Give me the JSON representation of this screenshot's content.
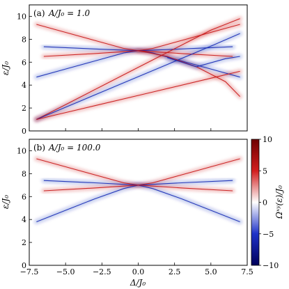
{
  "chart_data": [
    {
      "type": "heatmap",
      "panel_label": "(a)",
      "annotation": "A/J₀ = 1.0",
      "xlabel": "Δ/J₀",
      "ylabel": "ε/J₀",
      "xlim": [
        -7.5,
        7.5
      ],
      "ylim": [
        0,
        11
      ],
      "x_ticks": [],
      "y_ticks": [
        0,
        2,
        4,
        6,
        8,
        10
      ],
      "grid": false,
      "curves": [
        {
          "color": "#c81414",
          "x": [
            -7,
            -5,
            -3,
            -1,
            0,
            1,
            3,
            5,
            7
          ],
          "y": [
            9.3,
            8.6,
            7.9,
            7.2,
            7.0,
            7.2,
            7.9,
            8.6,
            9.3
          ]
        },
        {
          "color": "#1428b4",
          "x": [
            -7,
            -5,
            -3,
            -1,
            0,
            1,
            3,
            5,
            7
          ],
          "y": [
            4.7,
            5.4,
            6.1,
            6.8,
            7.0,
            6.8,
            6.1,
            5.4,
            4.7
          ]
        },
        {
          "color": "#1428b4",
          "x": [
            -6.5,
            -3,
            0,
            3,
            6.5
          ],
          "y": [
            7.35,
            7.15,
            7.0,
            7.15,
            7.35
          ]
        },
        {
          "color": "#c81414",
          "x": [
            -6.5,
            -3,
            0,
            3,
            6.5
          ],
          "y": [
            6.5,
            6.75,
            7.0,
            6.75,
            6.5
          ]
        },
        {
          "color": "#c81414",
          "x": [
            -7,
            -5,
            -3,
            -1,
            1,
            3,
            5,
            7
          ],
          "y": [
            1.0,
            2.3,
            3.6,
            4.9,
            6.2,
            7.5,
            8.8,
            9.8
          ]
        },
        {
          "color": "#1428b4",
          "x": [
            -7,
            -4,
            -1,
            2,
            5,
            7
          ],
          "y": [
            1.0,
            2.6,
            4.2,
            5.8,
            7.4,
            8.5
          ]
        },
        {
          "color": "#c81414",
          "x": [
            -7,
            -3,
            1,
            5,
            7
          ],
          "y": [
            1.0,
            2.2,
            3.4,
            4.6,
            5.2
          ]
        },
        {
          "color": "#c81414",
          "x": [
            0,
            2,
            4,
            6,
            7
          ],
          "y": [
            7.0,
            6.5,
            5.6,
            4.3,
            3.0
          ]
        },
        {
          "color": "#1428b4",
          "x": [
            2,
            4,
            6,
            7
          ],
          "y": [
            6.4,
            5.6,
            6.3,
            6.5
          ]
        }
      ]
    },
    {
      "type": "heatmap",
      "panel_label": "(b)",
      "annotation": "A/J₀ = 100.0",
      "xlabel": "Δ/J₀",
      "ylabel": "ε/J₀",
      "xlim": [
        -7.5,
        7.5
      ],
      "ylim": [
        0,
        11
      ],
      "x_ticks": [
        -7.5,
        -5.0,
        -2.5,
        0.0,
        2.5,
        5.0,
        7.5
      ],
      "y_ticks": [
        0,
        2,
        4,
        6,
        8,
        10
      ],
      "grid": false,
      "curves": [
        {
          "color": "#c81414",
          "x": [
            -7,
            -5,
            -3,
            -1,
            0,
            1,
            3,
            5,
            7
          ],
          "y": [
            9.3,
            8.6,
            7.9,
            7.2,
            7.0,
            7.2,
            7.9,
            8.6,
            9.3
          ]
        },
        {
          "color": "#1428b4",
          "x": [
            -7,
            -5,
            -3,
            -1,
            0,
            1,
            3,
            5,
            7
          ],
          "y": [
            3.8,
            4.8,
            5.8,
            6.7,
            7.0,
            6.7,
            5.8,
            4.8,
            3.8
          ]
        },
        {
          "color": "#1428b4",
          "x": [
            -6.5,
            -3,
            0,
            3,
            6.5
          ],
          "y": [
            7.4,
            7.2,
            7.0,
            7.2,
            7.4
          ]
        },
        {
          "color": "#c81414",
          "x": [
            -6.5,
            -3,
            0,
            3,
            6.5
          ],
          "y": [
            6.5,
            6.75,
            7.0,
            6.75,
            6.5
          ]
        }
      ]
    }
  ],
  "colorbar": {
    "label": "Ωˣʸ(ε)/J₀",
    "range": [
      -10,
      10
    ],
    "ticks": [
      -10,
      -5,
      0,
      5,
      10
    ],
    "colormap": [
      "#00005a",
      "#1e32c8",
      "#ffffff",
      "#d21e1e",
      "#6e0000"
    ]
  }
}
